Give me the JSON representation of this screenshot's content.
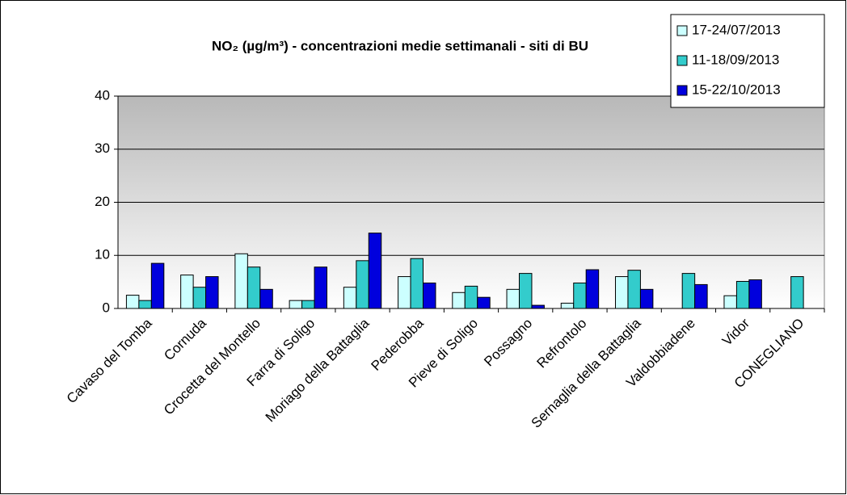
{
  "chart_data": {
    "type": "bar",
    "title": "NO₂ (µg/m³) - concentrazioni medie settimanali - siti di BU",
    "categories": [
      "Cavaso del Tomba",
      "Cornuda",
      "Crocetta del Montello",
      "Farra di Soligo",
      "Moriago della Battaglia",
      "Pederobba",
      "Pieve di Soligo",
      "Possagno",
      "Refrontolo",
      "Sernaglia della Battaglia",
      "Valdobbiadene",
      "Vidor",
      "CONEGLIANO"
    ],
    "series": [
      {
        "name": "17-24/07/2013",
        "color": "#ccffff",
        "values": [
          2.5,
          6.3,
          10.3,
          1.5,
          4,
          6,
          3,
          3.6,
          1,
          6,
          null,
          2.4,
          null
        ]
      },
      {
        "name": "11-18/09/2013",
        "color": "#33cccc",
        "values": [
          1.5,
          4,
          7.8,
          1.5,
          9,
          9.4,
          4.2,
          6.6,
          4.8,
          7.2,
          6.6,
          5.1,
          6
        ]
      },
      {
        "name": "15-22/10/2013",
        "color": "#0000dd",
        "values": [
          8.5,
          6,
          3.6,
          7.8,
          14.2,
          4.8,
          2.1,
          0.6,
          7.3,
          3.6,
          4.5,
          5.4,
          null
        ]
      }
    ],
    "ylim": [
      0,
      40
    ],
    "yticks": [
      0,
      10,
      20,
      30,
      40
    ],
    "grid": true,
    "legend": "top-right"
  }
}
